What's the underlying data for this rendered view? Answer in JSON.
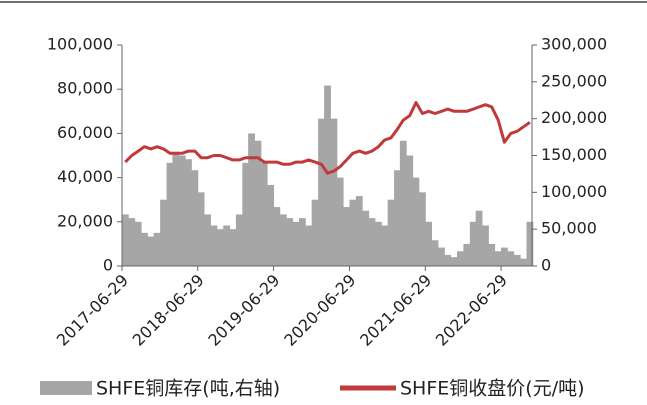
{
  "chart_data": {
    "type": "bar-line",
    "x": [
      "2017-07-15",
      "2017-08-15",
      "2017-09-15",
      "2017-10-15",
      "2017-11-15",
      "2017-12-15",
      "2018-01-15",
      "2018-02-15",
      "2018-03-15",
      "2018-04-15",
      "2018-05-15",
      "2018-06-15",
      "2018-07-15",
      "2018-08-15",
      "2018-09-15",
      "2018-10-15",
      "2018-11-15",
      "2018-12-15",
      "2019-01-15",
      "2019-02-15",
      "2019-03-15",
      "2019-04-15",
      "2019-05-15",
      "2019-06-15",
      "2019-07-15",
      "2019-08-15",
      "2019-09-15",
      "2019-10-15",
      "2019-11-15",
      "2019-12-15",
      "2020-01-15",
      "2020-02-15",
      "2020-03-15",
      "2020-04-15",
      "2020-05-15",
      "2020-06-15",
      "2020-07-15",
      "2020-08-15",
      "2020-09-15",
      "2020-10-15",
      "2020-11-15",
      "2020-12-15",
      "2021-01-15",
      "2021-02-15",
      "2021-03-15",
      "2021-04-15",
      "2021-05-15",
      "2021-06-15",
      "2021-07-15",
      "2021-08-15",
      "2021-09-15",
      "2021-10-15",
      "2021-11-15",
      "2021-12-15",
      "2022-01-15",
      "2022-02-15",
      "2022-03-15",
      "2022-04-15",
      "2022-05-15",
      "2022-06-15",
      "2022-07-15",
      "2022-08-15",
      "2022-09-15",
      "2022-10-15",
      "2022-11-15"
    ],
    "series": [
      {
        "name": "SHFE铜库存(吨,右轴)",
        "color": "#a6a6a6",
        "axis": "y2",
        "kind": "bar",
        "values": [
          70000,
          65000,
          60000,
          45000,
          40000,
          45000,
          90000,
          140000,
          155000,
          150000,
          145000,
          130000,
          100000,
          70000,
          55000,
          50000,
          55000,
          50000,
          70000,
          140000,
          180000,
          170000,
          140000,
          110000,
          80000,
          70000,
          65000,
          60000,
          65000,
          55000,
          90000,
          200000,
          245000,
          200000,
          120000,
          80000,
          90000,
          95000,
          75000,
          65000,
          60000,
          55000,
          90000,
          130000,
          170000,
          150000,
          120000,
          100000,
          60000,
          35000,
          25000,
          15000,
          12000,
          20000,
          30000,
          60000,
          75000,
          55000,
          30000,
          20000,
          25000,
          20000,
          15000,
          10000,
          60000
        ]
      },
      {
        "name": "SHFE铜收盘价(元/吨)",
        "color": "#c0393b",
        "kind": "line",
        "values": [
          47000,
          50000,
          52000,
          54000,
          53000,
          54000,
          53000,
          51000,
          51000,
          51000,
          52000,
          52000,
          49000,
          49000,
          50000,
          50000,
          49000,
          48000,
          48000,
          49000,
          49000,
          49000,
          47000,
          47000,
          47000,
          46000,
          46000,
          47000,
          47000,
          48000,
          47000,
          46000,
          42000,
          43000,
          45000,
          48000,
          51000,
          52000,
          51000,
          52000,
          54000,
          57000,
          58000,
          62000,
          66000,
          68000,
          74000,
          69000,
          70000,
          69000,
          70000,
          71000,
          70000,
          70000,
          70000,
          71000,
          72000,
          73000,
          72000,
          66000,
          56000,
          60000,
          61000,
          63000,
          65000
        ]
      }
    ],
    "xlim": [
      "2017-06-29",
      "2022-11-25"
    ],
    "xticks": [
      "2017-06-29",
      "2018-06-29",
      "2019-06-29",
      "2020-06-29",
      "2021-06-29",
      "2022-06-29"
    ],
    "ylim": [
      0,
      100000
    ],
    "yticks": [
      0,
      {
        "value": 20000,
        "label": "20,000"
      },
      {
        "value": 40000,
        "label": "40,000"
      },
      {
        "value": 60000,
        "label": "60,000"
      },
      {
        "value": 80000,
        "label": "80,000"
      },
      {
        "value": 100000,
        "label": "100,000"
      }
    ],
    "y2lim": [
      0,
      300000
    ],
    "y2ticks": [
      0,
      {
        "value": 50000,
        "label": "50,000"
      },
      {
        "value": 100000,
        "label": "100,000"
      },
      {
        "value": 150000,
        "label": "150,000"
      },
      {
        "value": 200000,
        "label": "200,000"
      },
      {
        "value": 250000,
        "label": "250,000"
      },
      {
        "value": 300000,
        "label": "300,000"
      }
    ],
    "legend": "bottom"
  }
}
